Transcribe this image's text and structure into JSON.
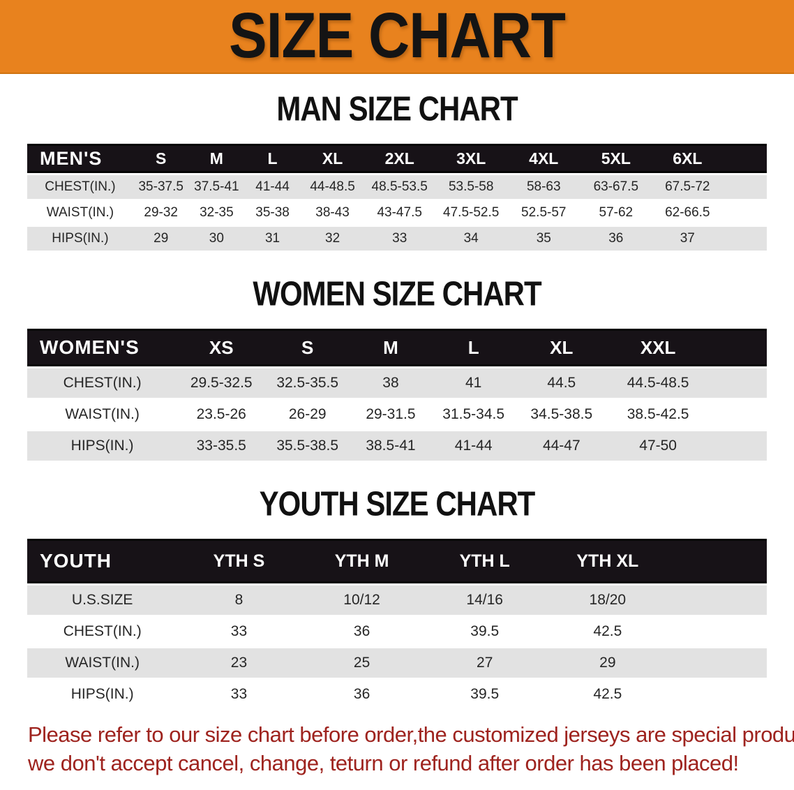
{
  "banner": {
    "title": "SIZE CHART"
  },
  "sections": [
    {
      "heading": "MAN SIZE CHART",
      "table": {
        "header_label": "MEN'S",
        "columns": [
          "S",
          "M",
          "L",
          "XL",
          "2XL",
          "3XL",
          "4XL",
          "5XL",
          "6XL"
        ],
        "rows": [
          {
            "label": "CHEST(IN.)",
            "values": [
              "35-37.5",
              "37.5-41",
              "41-44",
              "44-48.5",
              "48.5-53.5",
              "53.5-58",
              "58-63",
              "63-67.5",
              "67.5-72"
            ]
          },
          {
            "label": "WAIST(IN.)",
            "values": [
              "29-32",
              "32-35",
              "35-38",
              "38-43",
              "43-47.5",
              "47.5-52.5",
              "52.5-57",
              "57-62",
              "62-66.5"
            ]
          },
          {
            "label": "HIPS(IN.)",
            "values": [
              "29",
              "30",
              "31",
              "32",
              "33",
              "34",
              "35",
              "36",
              "37"
            ]
          }
        ]
      }
    },
    {
      "heading": "WOMEN SIZE CHART",
      "table": {
        "header_label": "WOMEN'S",
        "columns": [
          "XS",
          "S",
          "M",
          "L",
          "XL",
          "XXL"
        ],
        "rows": [
          {
            "label": "CHEST(IN.)",
            "values": [
              "29.5-32.5",
              "32.5-35.5",
              "38",
              "41",
              "44.5",
              "44.5-48.5"
            ]
          },
          {
            "label": "WAIST(IN.)",
            "values": [
              "23.5-26",
              "26-29",
              "29-31.5",
              "31.5-34.5",
              "34.5-38.5",
              "38.5-42.5"
            ]
          },
          {
            "label": "HIPS(IN.)",
            "values": [
              "33-35.5",
              "35.5-38.5",
              "38.5-41",
              "41-44",
              "44-47",
              "47-50"
            ]
          }
        ]
      }
    },
    {
      "heading": "YOUTH SIZE CHART",
      "table": {
        "header_label": "YOUTH",
        "columns": [
          "YTH S",
          "YTH M",
          "YTH L",
          "YTH XL"
        ],
        "rows": [
          {
            "label": "U.S.SIZE",
            "values": [
              "8",
              "10/12",
              "14/16",
              "18/20"
            ]
          },
          {
            "label": "CHEST(IN.)",
            "values": [
              "33",
              "36",
              "39.5",
              "42.5"
            ]
          },
          {
            "label": "WAIST(IN.)",
            "values": [
              "23",
              "25",
              "27",
              "29"
            ]
          },
          {
            "label": "HIPS(IN.)",
            "values": [
              "33",
              "36",
              "39.5",
              "42.5"
            ]
          }
        ]
      }
    }
  ],
  "footer": {
    "line1": "Please refer to our size chart before order,the customized jerseys are special products,",
    "line2": "we don't accept cancel, change, teturn or refund after order has been placed!"
  },
  "colors": {
    "banner_bg": "#e8821e",
    "header_bg": "#171217",
    "row_alt": "#e2e2e2",
    "note_color": "#9e231e"
  }
}
